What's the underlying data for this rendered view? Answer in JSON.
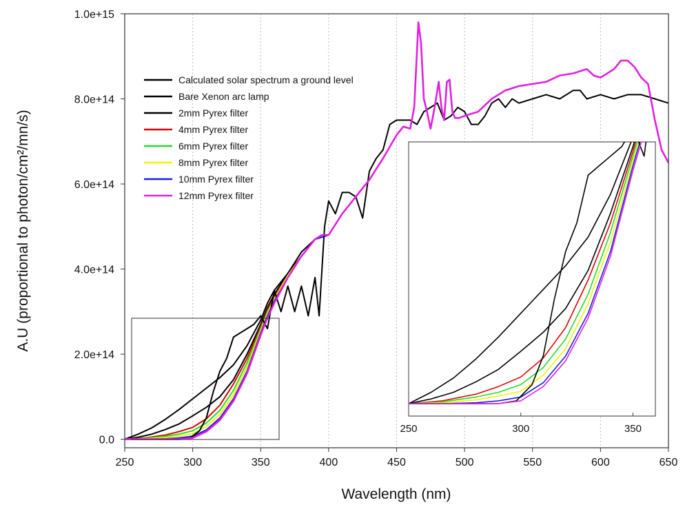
{
  "chart_data": [
    {
      "type": "line",
      "xlabel": "Wavelength (nm)",
      "ylabel": "A.U (proportional to photon/cm²/mn/s)",
      "xlim": [
        250,
        650
      ],
      "ylim": [
        -20000000000000.0,
        1000000000000000.0
      ],
      "xticks": [
        250,
        300,
        350,
        400,
        450,
        500,
        550,
        600,
        650
      ],
      "yticks": [
        0,
        200000000000000.0,
        400000000000000.0,
        600000000000000.0,
        800000000000000.0,
        1000000000000000.0
      ],
      "ytick_labels": [
        "0.0",
        "2.0e+14",
        "4.0e+14",
        "6.0e+14",
        "8.0e+14",
        "1.0e+15"
      ],
      "grid": "vertical dotted",
      "legend_position": "upper-left",
      "series": [
        {
          "name": "Calculated solar spectrum a ground level",
          "color": "#000000",
          "x": [
            250,
            290,
            298,
            305,
            310,
            315,
            320,
            325,
            330,
            335,
            340,
            345,
            350,
            355,
            360,
            365,
            370,
            375,
            380,
            385,
            390,
            393,
            397,
            400,
            405,
            410,
            415,
            420,
            425,
            430,
            435,
            440,
            445,
            450,
            455,
            460,
            465,
            470,
            475,
            480,
            485,
            490,
            495,
            500,
            505,
            510,
            515,
            520,
            525,
            530,
            535,
            540,
            545,
            550,
            560,
            570,
            580,
            585,
            590,
            600,
            610,
            620,
            630,
            640,
            650
          ],
          "y": [
            0,
            0,
            3000000000000.0,
            20000000000000.0,
            50000000000000.0,
            110000000000000.0,
            160000000000000.0,
            190000000000000.0,
            240000000000000.0,
            250000000000000.0,
            260000000000000.0,
            270000000000000.0,
            290000000000000.0,
            260000000000000.0,
            350000000000000.0,
            300000000000000.0,
            360000000000000.0,
            300000000000000.0,
            360000000000000.0,
            290000000000000.0,
            380000000000000.0,
            290000000000000.0,
            500000000000000.0,
            560000000000000.0,
            530000000000000.0,
            580000000000000.0,
            580000000000000.0,
            570000000000000.0,
            520000000000000.0,
            630000000000000.0,
            660000000000000.0,
            680000000000000.0,
            740000000000000.0,
            750000000000000.0,
            750000000000000.0,
            750000000000000.0,
            740000000000000.0,
            770000000000000.0,
            780000000000000.0,
            790000000000000.0,
            750000000000000.0,
            760000000000000.0,
            780000000000000.0,
            770000000000000.0,
            740000000000000.0,
            740000000000000.0,
            760000000000000.0,
            790000000000000.0,
            800000000000000.0,
            780000000000000.0,
            800000000000000.0,
            790000000000000.0,
            795000000000000.0,
            800000000000000.0,
            810000000000000.0,
            800000000000000.0,
            820000000000000.0,
            820000000000000.0,
            800000000000000.0,
            810000000000000.0,
            800000000000000.0,
            810000000000000.0,
            810000000000000.0,
            800000000000000.0,
            790000000000000.0
          ]
        },
        {
          "name": "Bare Xenon arc lamp",
          "color": "#000000",
          "x": [
            250,
            260,
            270,
            280,
            290,
            300,
            310,
            320,
            330,
            340,
            350,
            355,
            360,
            370,
            380,
            390,
            400
          ],
          "y": [
            0,
            12000000000000.0,
            27000000000000.0,
            47000000000000.0,
            70000000000000.0,
            95000000000000.0,
            120000000000000.0,
            145000000000000.0,
            175000000000000.0,
            220000000000000.0,
            280000000000000.0,
            320000000000000.0,
            350000000000000.0,
            390000000000000.0,
            440000000000000.0,
            470000000000000.0,
            480000000000000.0
          ]
        },
        {
          "name": "2mm Pyrex filter",
          "color": "#000000",
          "x": [
            250,
            260,
            270,
            280,
            290,
            300,
            310,
            320,
            330,
            340,
            350,
            355,
            360,
            370,
            380,
            390,
            400
          ],
          "y": [
            0,
            5000000000000.0,
            12000000000000.0,
            23000000000000.0,
            36000000000000.0,
            55000000000000.0,
            75000000000000.0,
            100000000000000.0,
            140000000000000.0,
            200000000000000.0,
            270000000000000.0,
            310000000000000.0,
            340000000000000.0,
            390000000000000.0,
            430000000000000.0,
            470000000000000.0,
            480000000000000.0
          ]
        },
        {
          "name": "4mm Pyrex filter",
          "color": "#e00000",
          "x": [
            250,
            265,
            280,
            290,
            300,
            310,
            320,
            330,
            340,
            350,
            355,
            360,
            370,
            380,
            390,
            400
          ],
          "y": [
            0,
            3000000000000.0,
            10000000000000.0,
            18000000000000.0,
            28000000000000.0,
            48000000000000.0,
            80000000000000.0,
            130000000000000.0,
            190000000000000.0,
            265000000000000.0,
            305000000000000.0,
            335000000000000.0,
            385000000000000.0,
            430000000000000.0,
            470000000000000.0,
            480000000000000.0
          ]
        },
        {
          "name": "6mm Pyrex filter",
          "color": "#22dd22",
          "x": [
            250,
            265,
            280,
            290,
            300,
            310,
            320,
            330,
            340,
            350,
            355,
            360,
            370,
            380,
            390,
            400
          ],
          "y": [
            0,
            2000000000000.0,
            7000000000000.0,
            12000000000000.0,
            20000000000000.0,
            38000000000000.0,
            68000000000000.0,
            115000000000000.0,
            180000000000000.0,
            260000000000000.0,
            300000000000000.0,
            330000000000000.0,
            385000000000000.0,
            430000000000000.0,
            470000000000000.0,
            480000000000000.0
          ]
        },
        {
          "name": "8mm Pyrex filter",
          "color": "#f2f200",
          "x": [
            250,
            265,
            280,
            290,
            300,
            310,
            320,
            330,
            340,
            350,
            355,
            360,
            370,
            380,
            390,
            400
          ],
          "y": [
            0,
            1000000000000.0,
            4000000000000.0,
            8000000000000.0,
            13000000000000.0,
            30000000000000.0,
            58000000000000.0,
            105000000000000.0,
            170000000000000.0,
            255000000000000.0,
            295000000000000.0,
            330000000000000.0,
            385000000000000.0,
            430000000000000.0,
            470000000000000.0,
            480000000000000.0
          ]
        },
        {
          "name": "10mm Pyrex filter",
          "color": "#1a1aee",
          "x": [
            250,
            265,
            280,
            290,
            300,
            310,
            320,
            330,
            340,
            350,
            355,
            360,
            370,
            380,
            390,
            400
          ],
          "y": [
            0,
            0,
            1000000000000.0,
            3000000000000.0,
            7000000000000.0,
            22000000000000.0,
            50000000000000.0,
            95000000000000.0,
            160000000000000.0,
            250000000000000.0,
            290000000000000.0,
            325000000000000.0,
            380000000000000.0,
            430000000000000.0,
            470000000000000.0,
            480000000000000.0
          ]
        },
        {
          "name": "12mm Pyrex filter",
          "color": "#e020e0",
          "x": [
            250,
            290,
            300,
            310,
            320,
            330,
            340,
            350,
            355,
            360,
            370,
            380,
            390,
            395,
            400,
            410,
            420,
            430,
            440,
            450,
            455,
            460,
            463,
            466,
            468,
            470,
            472,
            475,
            478,
            481,
            483,
            485,
            487,
            489,
            491,
            493,
            496,
            500,
            510,
            520,
            530,
            540,
            550,
            560,
            570,
            580,
            590,
            595,
            600,
            605,
            610,
            615,
            620,
            625,
            630,
            635,
            640,
            645,
            650
          ],
          "y": [
            0,
            0,
            3000000000000.0,
            18000000000000.0,
            45000000000000.0,
            90000000000000.0,
            155000000000000.0,
            245000000000000.0,
            285000000000000.0,
            320000000000000.0,
            380000000000000.0,
            430000000000000.0,
            470000000000000.0,
            480000000000000.0,
            480000000000000.0,
            530000000000000.0,
            570000000000000.0,
            610000000000000.0,
            660000000000000.0,
            715000000000000.0,
            735000000000000.0,
            730000000000000.0,
            780000000000000.0,
            980000000000000.0,
            930000000000000.0,
            800000000000000.0,
            775000000000000.0,
            730000000000000.0,
            780000000000000.0,
            840000000000000.0,
            780000000000000.0,
            750000000000000.0,
            840000000000000.0,
            845000000000000.0,
            770000000000000.0,
            755000000000000.0,
            755000000000000.0,
            760000000000000.0,
            770000000000000.0,
            800000000000000.0,
            820000000000000.0,
            830000000000000.0,
            835000000000000.0,
            840000000000000.0,
            855000000000000.0,
            860000000000000.0,
            870000000000000.0,
            855000000000000.0,
            850000000000000.0,
            860000000000000.0,
            870000000000000.0,
            890000000000000.0,
            890000000000000.0,
            875000000000000.0,
            850000000000000.0,
            835000000000000.0,
            750000000000000.0,
            680000000000000.0,
            650000000000000.0
          ]
        }
      ]
    },
    {
      "type": "line",
      "role": "inset zoom of 250-360 nm region",
      "xlim": [
        250,
        360
      ],
      "xticks": [
        250,
        300,
        350
      ],
      "xtick_labels": [
        "250",
        "300",
        "350"
      ],
      "grid": "off"
    }
  ]
}
